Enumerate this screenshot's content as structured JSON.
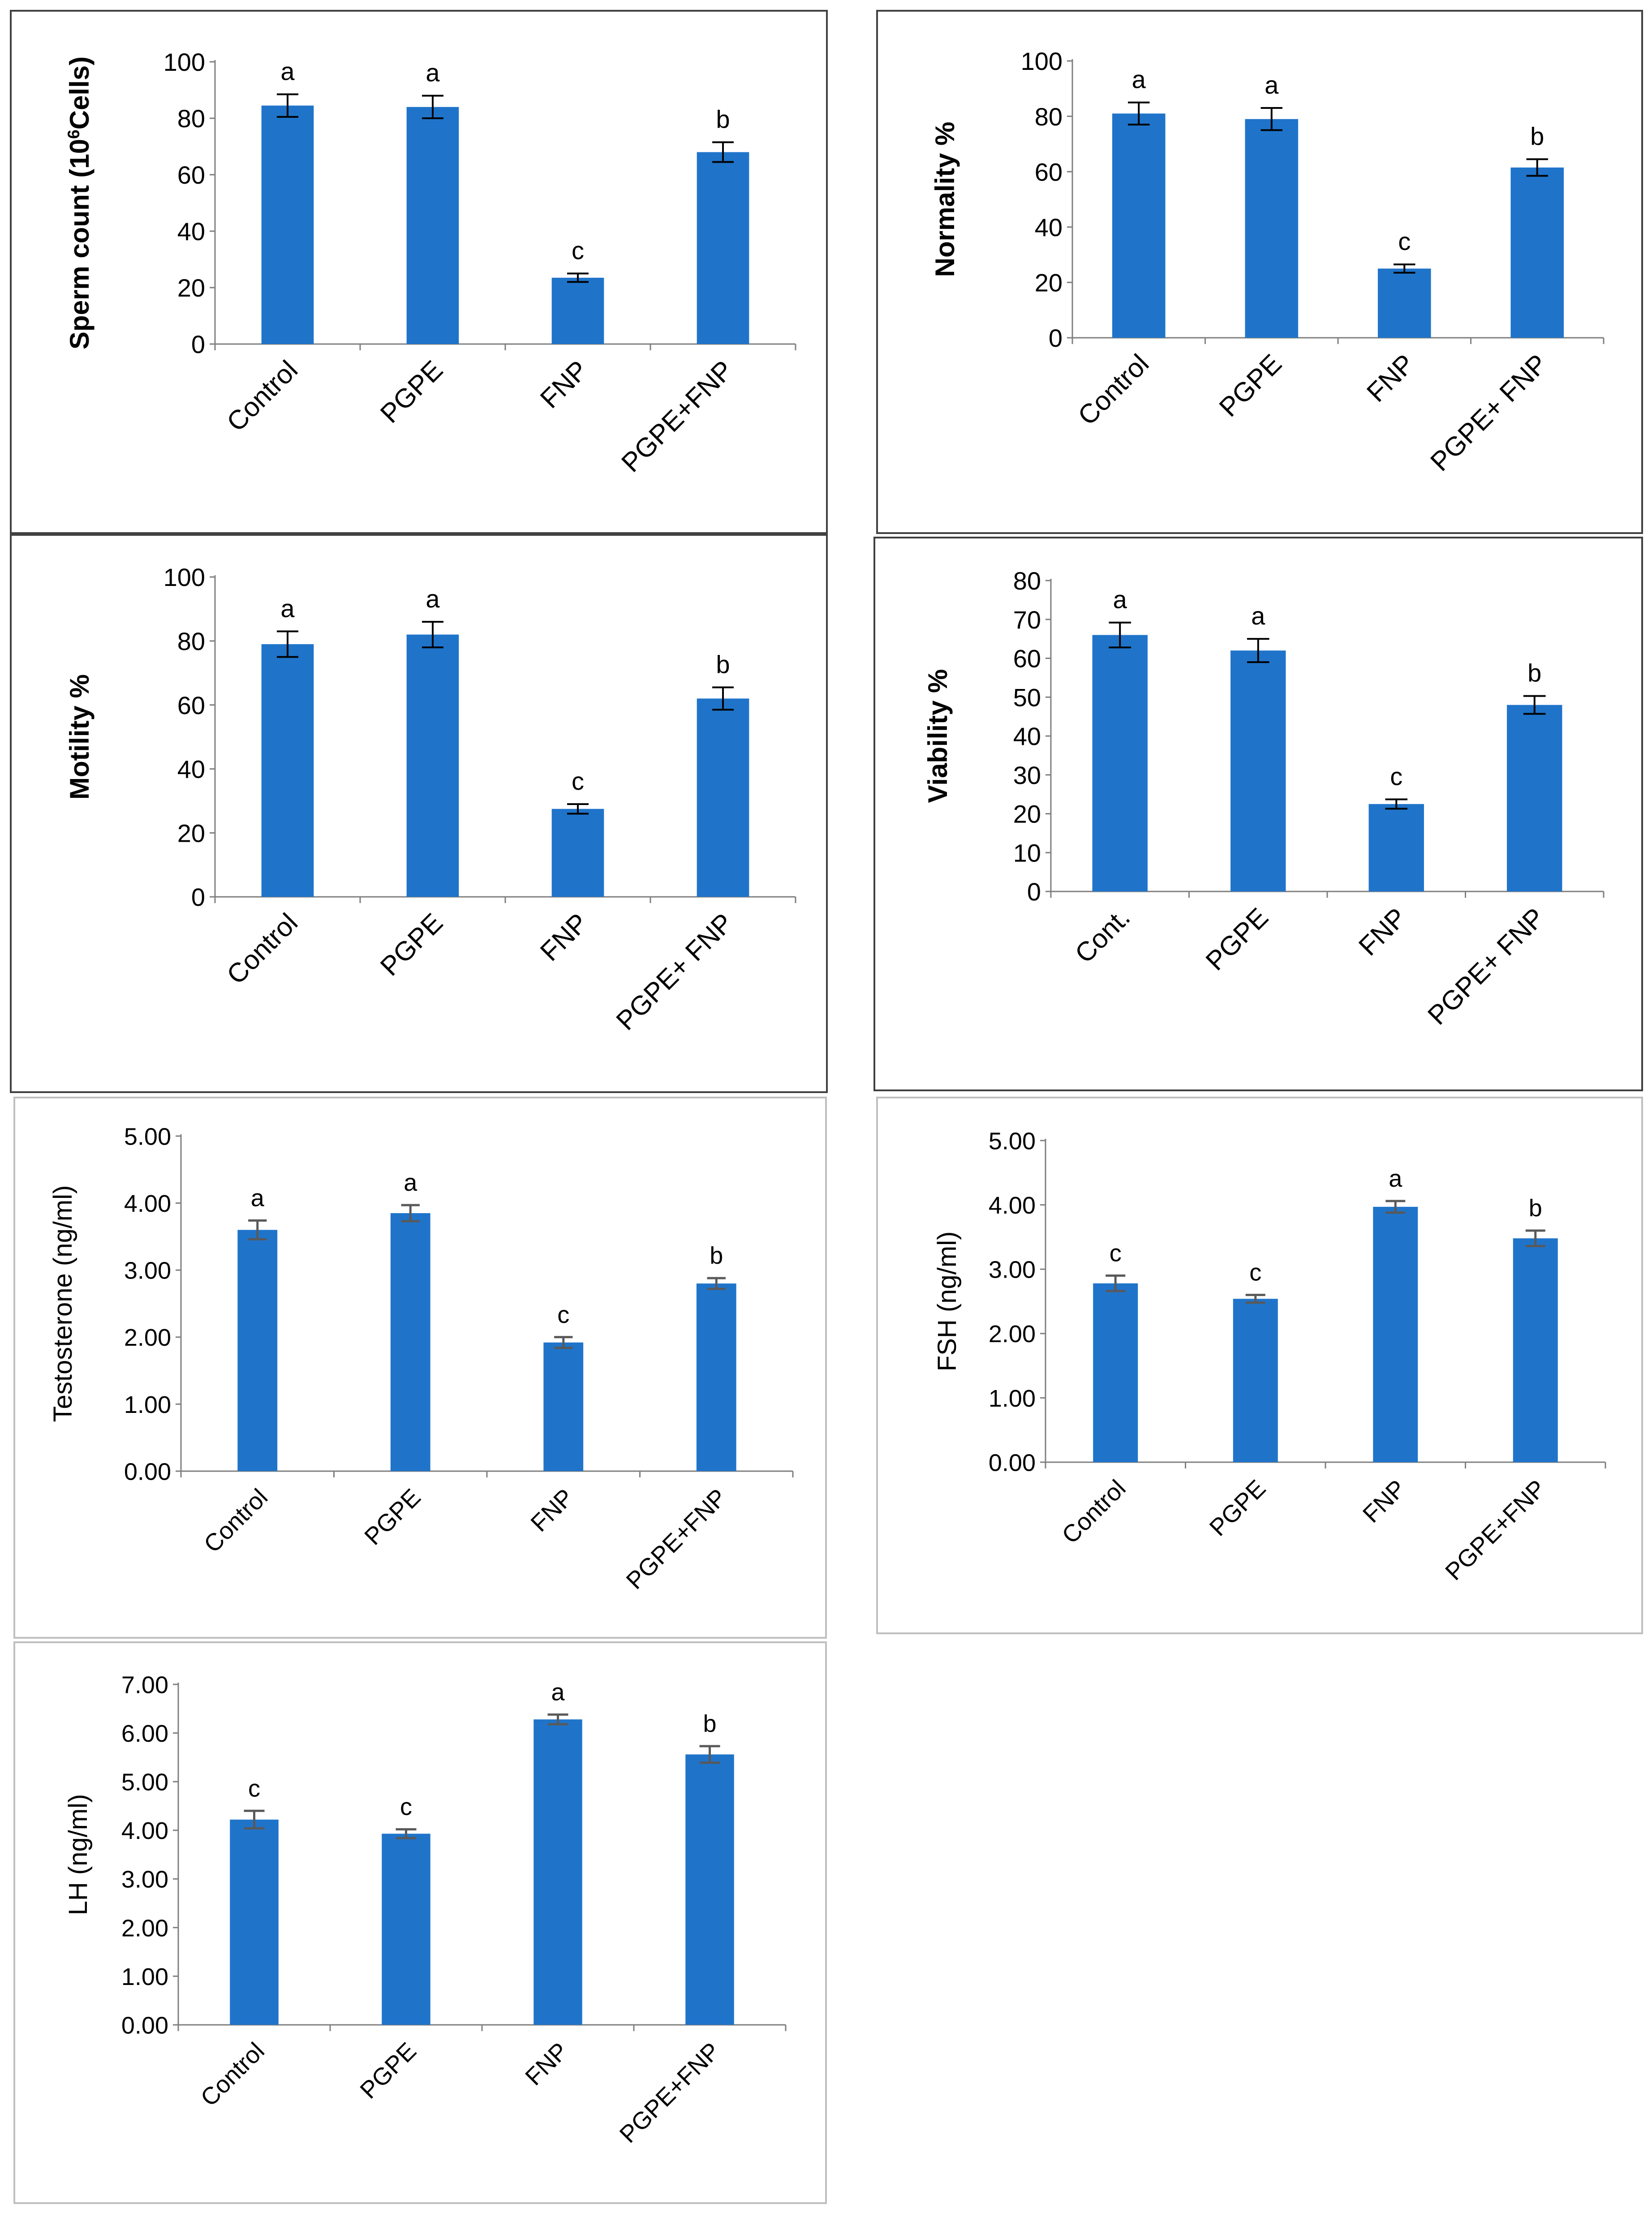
{
  "figure": {
    "bar_color": "#1F74CA",
    "axis_color": "#7f7f7f",
    "error_color_dark": "#000000",
    "error_color_light": "#595959"
  },
  "chart_data": [
    {
      "id": "sperm",
      "type": "bar",
      "title": "",
      "ylabel_main": "Sperm count (10",
      "ylabel_sup": "6",
      "ylabel_tail": "Cells)",
      "categories": [
        "Control",
        "PGPE",
        "FNP",
        "PGPE+FNP"
      ],
      "values": [
        84.5,
        84,
        23.5,
        68
      ],
      "errors": [
        4,
        4,
        1.5,
        3.5
      ],
      "letters": [
        "a",
        "a",
        "c",
        "b"
      ],
      "ylim": [
        0,
        100
      ],
      "yticks": [
        "0",
        "20",
        "40",
        "60",
        "80",
        "100"
      ]
    },
    {
      "id": "normality",
      "type": "bar",
      "title": "",
      "ylabel": "Normality %",
      "categories": [
        "Control",
        "PGPE",
        "FNP",
        "PGPE+ FNP"
      ],
      "values": [
        81,
        79,
        25,
        61.5
      ],
      "errors": [
        4,
        4,
        1.5,
        3
      ],
      "letters": [
        "a",
        "a",
        "c",
        "b"
      ],
      "ylim": [
        0,
        100
      ],
      "yticks": [
        "0",
        "20",
        "40",
        "60",
        "80",
        "100"
      ]
    },
    {
      "id": "motility",
      "type": "bar",
      "title": "",
      "ylabel": "Motility %",
      "categories": [
        "Control",
        "PGPE",
        "FNP",
        "PGPE+ FNP"
      ],
      "values": [
        79,
        82,
        27.5,
        62
      ],
      "errors": [
        4,
        4,
        1.5,
        3.5
      ],
      "letters": [
        "a",
        "a",
        "c",
        "b"
      ],
      "ylim": [
        0,
        100
      ],
      "yticks": [
        "0",
        "20",
        "40",
        "60",
        "80",
        "100"
      ]
    },
    {
      "id": "viability",
      "type": "bar",
      "title": "",
      "ylabel": "Viability %",
      "categories": [
        "Cont.",
        "PGPE",
        "FNP",
        "PGPE+ FNP"
      ],
      "values": [
        66,
        62,
        22.5,
        48
      ],
      "errors": [
        3.2,
        3,
        1.2,
        2.3
      ],
      "letters": [
        "a",
        "a",
        "c",
        "b"
      ],
      "ylim": [
        0,
        80
      ],
      "yticks": [
        "0",
        "10",
        "20",
        "30",
        "40",
        "50",
        "60",
        "70",
        "80"
      ]
    },
    {
      "id": "testosterone",
      "type": "bar",
      "title": "",
      "ylabel": "Testosterone (ng/ml)",
      "categories": [
        "Control",
        "PGPE",
        "FNP",
        "PGPE+FNP"
      ],
      "values": [
        3.6,
        3.85,
        1.92,
        2.8
      ],
      "errors": [
        0.14,
        0.12,
        0.08,
        0.08
      ],
      "letters": [
        "a",
        "a",
        "c",
        "b"
      ],
      "ylim": [
        0,
        5
      ],
      "yticks": [
        "0.00",
        "1.00",
        "2.00",
        "3.00",
        "4.00",
        "5.00"
      ]
    },
    {
      "id": "fsh",
      "type": "bar",
      "title": "",
      "ylabel": "FSH (ng/ml)",
      "categories": [
        "Control",
        "PGPE",
        "FNP",
        "PGPE+FNP"
      ],
      "values": [
        2.78,
        2.54,
        3.97,
        3.48
      ],
      "errors": [
        0.12,
        0.06,
        0.09,
        0.12
      ],
      "letters": [
        "c",
        "c",
        "a",
        "b"
      ],
      "ylim": [
        0,
        5
      ],
      "yticks": [
        "0.00",
        "1.00",
        "2.00",
        "3.00",
        "4.00",
        "5.00"
      ]
    },
    {
      "id": "lh",
      "type": "bar",
      "title": "",
      "ylabel": "LH (ng/ml)",
      "categories": [
        "Control",
        "PGPE",
        "FNP",
        "PGPE+FNP"
      ],
      "values": [
        4.22,
        3.93,
        6.28,
        5.56
      ],
      "errors": [
        0.18,
        0.09,
        0.1,
        0.17
      ],
      "letters": [
        "c",
        "c",
        "a",
        "b"
      ],
      "ylim": [
        0,
        7
      ],
      "yticks": [
        "0.00",
        "1.00",
        "2.00",
        "3.00",
        "4.00",
        "5.00",
        "6.00",
        "7.00"
      ]
    }
  ]
}
